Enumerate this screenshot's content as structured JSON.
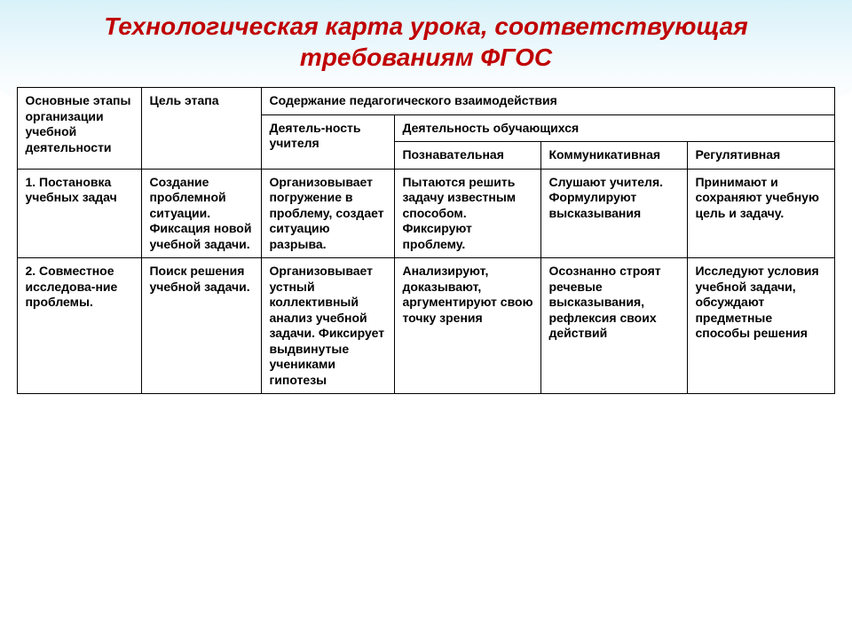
{
  "title_line1": "Технологическая карта урока, соответствующая",
  "title_line2": "требованиям ФГОС",
  "title_color": "#c00000",
  "border_color": "#000000",
  "cell_font_size": 14,
  "headers": {
    "col1": "Основные этапы организации учебной деятельности",
    "col2": "Цель этапа",
    "col3_span": "Содержание педагогического взаимодействия",
    "teacher": "Деятель-ность учителя",
    "student_span": "Деятельность обучающихся",
    "cognitive": "Познавательная",
    "communic": "Коммуникативная",
    "regul": "Регулятивная"
  },
  "rows": [
    {
      "stage": "1. Постановка учебных задач",
      "goal": "Создание проблемной ситуации. Фиксация новой учебной задачи.",
      "teacher": "Организовывает погружение в проблему, создает ситуацию разрыва.",
      "cognitive": "Пытаются решить задачу известным способом. Фиксируют проблему.",
      "communic": "Слушают учителя. Формулируют высказывания",
      "regul": "Принимают и сохраняют учебную цель и задачу."
    },
    {
      "stage": "2. Совместное исследова-ние проблемы.",
      "goal": "Поиск решения учебной задачи.",
      "teacher": "Организовывает устный коллективный анализ учебной задачи. Фиксирует выдвинутые учениками гипотезы",
      "cognitive": "Анализируют, доказывают, аргументируют свою точку зрения",
      "communic": "Осознанно строят речевые высказывания, рефлексия своих действий",
      "regul": "Исследуют условия учебной задачи, обсуждают предметные способы решения"
    }
  ]
}
